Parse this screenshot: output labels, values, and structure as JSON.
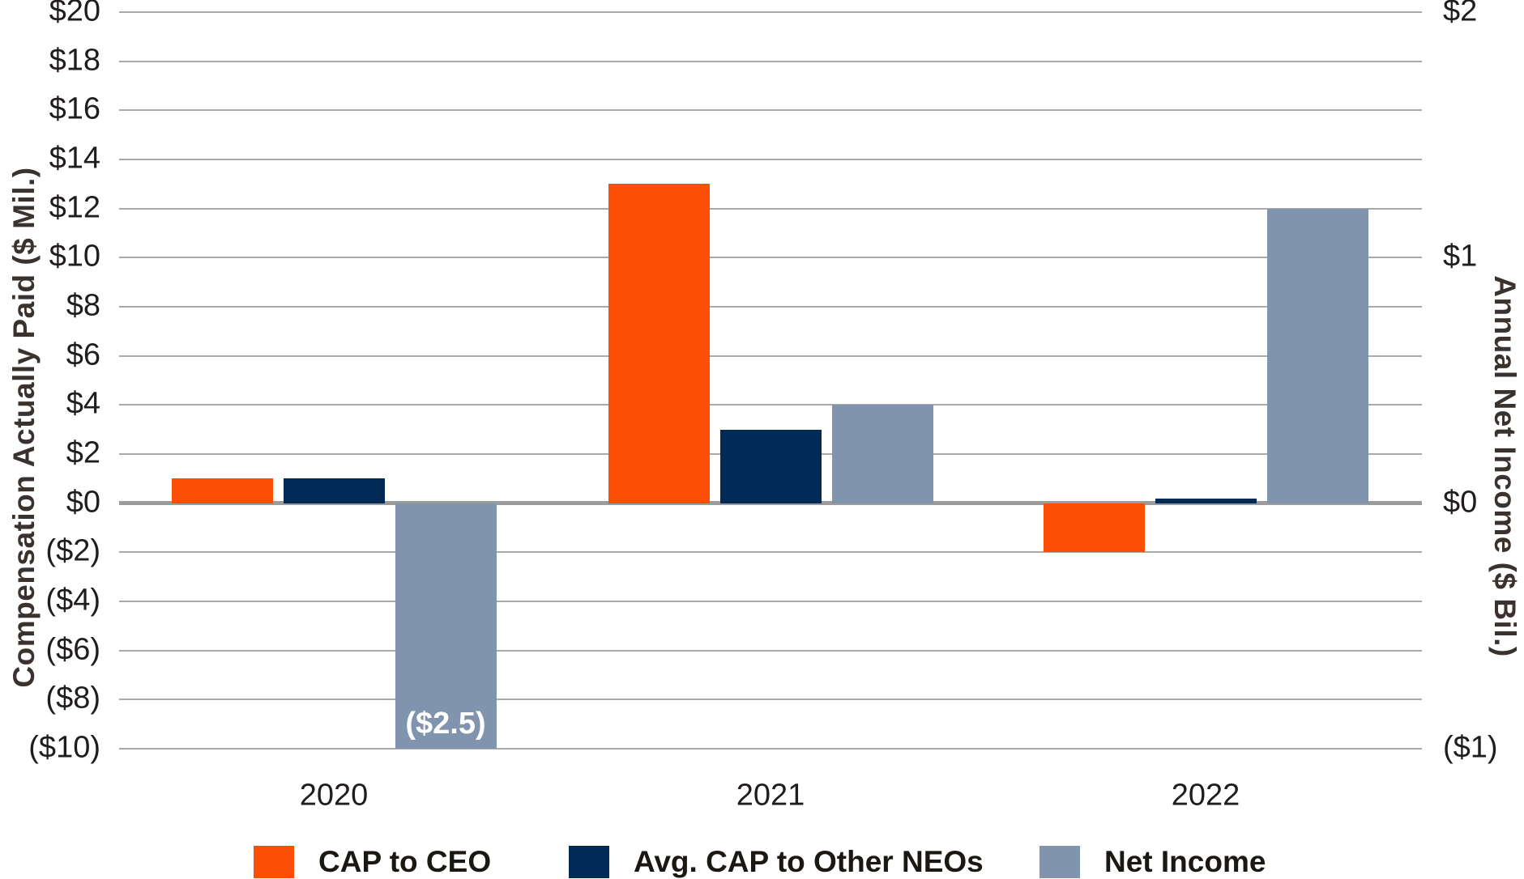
{
  "chart_data": {
    "type": "bar",
    "title": "",
    "categories": [
      "2020",
      "2021",
      "2022"
    ],
    "series": [
      {
        "name": "CAP to CEO",
        "color": "#FC4E05",
        "axis": "left",
        "unit": "$ Mil.",
        "values": [
          1.0,
          13.0,
          -2.0
        ]
      },
      {
        "name": "Avg. CAP to Other NEOs",
        "color": "#012A57",
        "axis": "left",
        "unit": "$ Mil.",
        "values": [
          1.0,
          3.0,
          0.2
        ]
      },
      {
        "name": "Net Income",
        "color": "#8094AE",
        "axis": "right",
        "unit": "$ Bil.",
        "values": [
          -2.5,
          0.4,
          1.2
        ],
        "data_labels": [
          "($2.5)",
          "",
          ""
        ],
        "clipped_at_axis_min": [
          true,
          false,
          false
        ]
      }
    ],
    "left_axis": {
      "title": "Compensation Actually Paid ($ Mil.)",
      "min": -10,
      "max": 20,
      "step": 2,
      "ticks": [
        {
          "value": 20,
          "label": "$20"
        },
        {
          "value": 18,
          "label": "$18"
        },
        {
          "value": 16,
          "label": "$16"
        },
        {
          "value": 14,
          "label": "$14"
        },
        {
          "value": 12,
          "label": "$12"
        },
        {
          "value": 10,
          "label": "$10"
        },
        {
          "value": 8,
          "label": "$8"
        },
        {
          "value": 6,
          "label": "$6"
        },
        {
          "value": 4,
          "label": "$4"
        },
        {
          "value": 2,
          "label": "$2"
        },
        {
          "value": 0,
          "label": "$0"
        },
        {
          "value": -2,
          "label": "($2)"
        },
        {
          "value": -4,
          "label": "($4)"
        },
        {
          "value": -6,
          "label": "($6)"
        },
        {
          "value": -8,
          "label": "($8)"
        },
        {
          "value": -10,
          "label": "($10)"
        }
      ]
    },
    "right_axis": {
      "title": "Annual Net Income ($ Bil.)",
      "min": -1,
      "max": 2,
      "scale_to_left": 10,
      "ticks": [
        {
          "value": 2,
          "label": "$2"
        },
        {
          "value": 1,
          "label": "$1"
        },
        {
          "value": 0,
          "label": "$0"
        },
        {
          "value": -1,
          "label": "($1)"
        }
      ]
    },
    "legend": {
      "position": "bottom",
      "items": [
        "CAP to CEO",
        "Avg. CAP to Other NEOs",
        "Net Income"
      ]
    },
    "grid": true,
    "colors": {
      "gridline": "#A9A9A9",
      "zero_line": "#9B9B9B",
      "tick_text": "#201D1C",
      "axis_title_text": "#3A322F",
      "legend_text": "#1B1713",
      "bar_label_text": "#FFFFFF",
      "background": "#FFFFFF"
    }
  }
}
